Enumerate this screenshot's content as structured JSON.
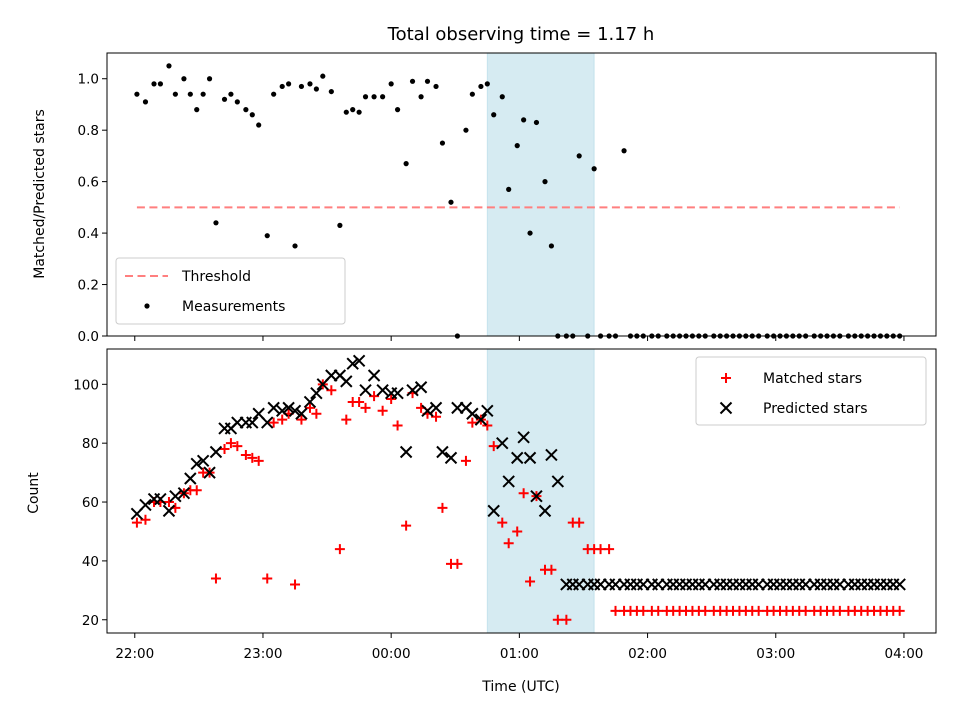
{
  "chart_data": [
    {
      "type": "scatter",
      "title": "Total observing time = 1.17 h",
      "ylabel": "Matched/Predicted stars",
      "xlabel": "",
      "ylim": [
        0,
        1.1
      ],
      "yticks": [
        0.0,
        0.2,
        0.4,
        0.6,
        0.8,
        1.0
      ],
      "yticklabels": [
        "0.0",
        "0.2",
        "0.4",
        "0.6",
        "0.8",
        "1.0"
      ],
      "shaded_interval": [
        "00:45",
        "01:35"
      ],
      "shade_color": "#add8e6",
      "threshold": {
        "name": "Threshold",
        "y": 0.5,
        "x_range": [
          "22:01",
          "03:58"
        ],
        "color": "#ff7f7f",
        "style": "dashed"
      },
      "series": [
        {
          "name": "Measurements",
          "color": "#000000",
          "marker": "dot",
          "x": [
            "22:01",
            "22:05",
            "22:09",
            "22:12",
            "22:16",
            "22:19",
            "22:23",
            "22:26",
            "22:29",
            "22:32",
            "22:35",
            "22:38",
            "22:42",
            "22:45",
            "22:48",
            "22:52",
            "22:55",
            "22:58",
            "23:02",
            "23:05",
            "23:09",
            "23:12",
            "23:15",
            "23:18",
            "23:22",
            "23:25",
            "23:28",
            "23:32",
            "23:36",
            "23:39",
            "23:42",
            "23:45",
            "23:48",
            "23:52",
            "23:56",
            "00:00",
            "00:03",
            "00:07",
            "00:10",
            "00:14",
            "00:17",
            "00:21",
            "00:24",
            "00:28",
            "00:31",
            "00:35",
            "00:38",
            "00:42",
            "00:45",
            "00:48",
            "00:52",
            "00:55",
            "00:59",
            "01:02",
            "01:05",
            "01:08",
            "01:12",
            "01:15",
            "01:18",
            "01:22",
            "01:25",
            "01:28",
            "01:32",
            "01:35",
            "01:38",
            "01:42",
            "01:45",
            "01:49",
            "01:52",
            "01:55",
            "01:58",
            "02:02",
            "02:05",
            "02:09",
            "02:12",
            "02:15",
            "02:18",
            "02:21",
            "02:24",
            "02:27",
            "02:31",
            "02:34",
            "02:37",
            "02:40",
            "02:43",
            "02:46",
            "02:49",
            "02:52",
            "02:56",
            "02:59",
            "03:02",
            "03:05",
            "03:08",
            "03:11",
            "03:14",
            "03:18",
            "03:21",
            "03:24",
            "03:27",
            "03:30",
            "03:34",
            "03:37",
            "03:40",
            "03:43",
            "03:46",
            "03:49",
            "03:52",
            "03:55",
            "03:58"
          ],
          "y": [
            0.94,
            0.91,
            0.98,
            0.98,
            1.05,
            0.94,
            1.0,
            0.94,
            0.88,
            0.94,
            1.0,
            0.44,
            0.92,
            0.94,
            0.91,
            0.88,
            0.86,
            0.82,
            0.39,
            0.94,
            0.97,
            0.98,
            0.35,
            0.97,
            0.98,
            0.96,
            1.01,
            0.95,
            0.43,
            0.87,
            0.88,
            0.87,
            0.93,
            0.93,
            0.93,
            0.98,
            0.88,
            0.67,
            0.99,
            0.93,
            0.99,
            0.97,
            0.75,
            0.52,
            0.0,
            0.8,
            0.94,
            0.97,
            0.98,
            0.86,
            0.93,
            0.57,
            0.74,
            0.84,
            0.4,
            0.83,
            0.6,
            0.35,
            0.0,
            0.0,
            0.0,
            0.7,
            0.0,
            0.65,
            0.0,
            0.0,
            0.0,
            0.72,
            0.0,
            0.0,
            0.0,
            0.0,
            0.0,
            0.0,
            0.0,
            0.0,
            0.0,
            0.0,
            0.0,
            0.0,
            0.0,
            0.0,
            0.0,
            0.0,
            0.0,
            0.0,
            0.0,
            0.0,
            0.0,
            0.0,
            0.0,
            0.0,
            0.0,
            0.0,
            0.0,
            0.0,
            0.0,
            0.0,
            0.0,
            0.0,
            0.0,
            0.0,
            0.0,
            0.0,
            0.0,
            0.0,
            0.0,
            0.0,
            0.0
          ]
        }
      ],
      "legend": {
        "position": "lower-left",
        "entries": [
          "Threshold",
          "Measurements"
        ]
      }
    },
    {
      "type": "scatter",
      "title": "",
      "xlabel": "Time (UTC)",
      "ylabel": "Count",
      "xlim": [
        "21:47",
        "04:15"
      ],
      "ylim": [
        15.5,
        112
      ],
      "xticklabels": [
        "22:00",
        "23:00",
        "00:00",
        "01:00",
        "02:00",
        "03:00",
        "04:00"
      ],
      "yticks": [
        20,
        40,
        60,
        80,
        100
      ],
      "yticklabels": [
        "20",
        "40",
        "60",
        "80",
        "100"
      ],
      "shaded_interval": [
        "00:45",
        "01:35"
      ],
      "shade_color": "#add8e6",
      "series": [
        {
          "name": "Matched stars",
          "color": "#ff0000",
          "marker": "plus",
          "x": [
            "22:01",
            "22:05",
            "22:09",
            "22:12",
            "22:16",
            "22:19",
            "22:23",
            "22:26",
            "22:29",
            "22:32",
            "22:35",
            "22:38",
            "22:42",
            "22:45",
            "22:48",
            "22:52",
            "22:55",
            "22:58",
            "23:02",
            "23:05",
            "23:09",
            "23:12",
            "23:15",
            "23:18",
            "23:22",
            "23:25",
            "23:28",
            "23:32",
            "23:36",
            "23:39",
            "23:42",
            "23:45",
            "23:48",
            "23:52",
            "23:56",
            "00:00",
            "00:03",
            "00:07",
            "00:10",
            "00:14",
            "00:17",
            "00:21",
            "00:24",
            "00:28",
            "00:31",
            "00:35",
            "00:38",
            "00:42",
            "00:45",
            "00:48",
            "00:52",
            "00:55",
            "00:59",
            "01:02",
            "01:05",
            "01:08",
            "01:12",
            "01:15",
            "01:18",
            "01:22",
            "01:25",
            "01:28",
            "01:32",
            "01:35",
            "01:38",
            "01:42",
            "01:45",
            "01:49",
            "01:52",
            "01:55",
            "01:58",
            "02:02",
            "02:05",
            "02:09",
            "02:12",
            "02:15",
            "02:18",
            "02:21",
            "02:24",
            "02:27",
            "02:31",
            "02:34",
            "02:37",
            "02:40",
            "02:43",
            "02:46",
            "02:49",
            "02:52",
            "02:56",
            "02:59",
            "03:02",
            "03:05",
            "03:08",
            "03:11",
            "03:14",
            "03:18",
            "03:21",
            "03:24",
            "03:27",
            "03:30",
            "03:34",
            "03:37",
            "03:40",
            "03:43",
            "03:46",
            "03:49",
            "03:52",
            "03:55",
            "03:58"
          ],
          "y": [
            53,
            54,
            60,
            60,
            60,
            58,
            63,
            64,
            64,
            70,
            70,
            34,
            78,
            80,
            79,
            76,
            75,
            74,
            34,
            87,
            88,
            90,
            32,
            88,
            92,
            90,
            100,
            98,
            44,
            88,
            94,
            94,
            92,
            96,
            91,
            95,
            86,
            52,
            97,
            92,
            90,
            89,
            58,
            39,
            39,
            74,
            87,
            88,
            86,
            79,
            53,
            46,
            50,
            63,
            33,
            62,
            37,
            37,
            20,
            20,
            53,
            53,
            44,
            44,
            44,
            44,
            23,
            23,
            23,
            23,
            23,
            23,
            23,
            23,
            23,
            23,
            23,
            23,
            23,
            23,
            23,
            23,
            23,
            23,
            23,
            23,
            23,
            23,
            23,
            23,
            23,
            23,
            23,
            23,
            23,
            23,
            23,
            23,
            23,
            23,
            23,
            23,
            23,
            23,
            23,
            23,
            23,
            23,
            23
          ]
        },
        {
          "name": "Predicted stars",
          "color": "#000000",
          "marker": "x",
          "x": [
            "22:01",
            "22:05",
            "22:09",
            "22:12",
            "22:16",
            "22:19",
            "22:23",
            "22:26",
            "22:29",
            "22:32",
            "22:35",
            "22:38",
            "22:42",
            "22:45",
            "22:48",
            "22:52",
            "22:55",
            "22:58",
            "23:02",
            "23:05",
            "23:09",
            "23:12",
            "23:15",
            "23:18",
            "23:22",
            "23:25",
            "23:28",
            "23:32",
            "23:36",
            "23:39",
            "23:42",
            "23:45",
            "23:48",
            "23:52",
            "23:56",
            "00:00",
            "00:03",
            "00:07",
            "00:10",
            "00:14",
            "00:17",
            "00:21",
            "00:24",
            "00:28",
            "00:31",
            "00:35",
            "00:38",
            "00:42",
            "00:45",
            "00:48",
            "00:52",
            "00:55",
            "00:59",
            "01:02",
            "01:05",
            "01:08",
            "01:12",
            "01:15",
            "01:18",
            "01:22",
            "01:25",
            "01:28",
            "01:32",
            "01:35",
            "01:38",
            "01:42",
            "01:45",
            "01:49",
            "01:52",
            "01:55",
            "01:58",
            "02:02",
            "02:05",
            "02:09",
            "02:12",
            "02:15",
            "02:18",
            "02:21",
            "02:24",
            "02:27",
            "02:31",
            "02:34",
            "02:37",
            "02:40",
            "02:43",
            "02:46",
            "02:49",
            "02:52",
            "02:56",
            "02:59",
            "03:02",
            "03:05",
            "03:08",
            "03:11",
            "03:14",
            "03:18",
            "03:21",
            "03:24",
            "03:27",
            "03:30",
            "03:34",
            "03:37",
            "03:40",
            "03:43",
            "03:46",
            "03:49",
            "03:52",
            "03:55",
            "03:58"
          ],
          "y": [
            56,
            59,
            61,
            61,
            57,
            62,
            63,
            68,
            73,
            74,
            70,
            77,
            85,
            85,
            87,
            87,
            87,
            90,
            87,
            92,
            91,
            92,
            91,
            90,
            94,
            97,
            100,
            103,
            103,
            101,
            107,
            108,
            98,
            103,
            98,
            97,
            97,
            77,
            98,
            99,
            91,
            92,
            77,
            75,
            92,
            92,
            90,
            88,
            91,
            57,
            80,
            67,
            75,
            82,
            75,
            62,
            57,
            76,
            67,
            32,
            32,
            32,
            32,
            32,
            32,
            32,
            32,
            32,
            32,
            32,
            32,
            32,
            32,
            32,
            32,
            32,
            32,
            32,
            32,
            32,
            32,
            32,
            32,
            32,
            32,
            32,
            32,
            32,
            32,
            32,
            32,
            32,
            32,
            32,
            32,
            32,
            32,
            32,
            32,
            32,
            32,
            32,
            32,
            32,
            32,
            32,
            32,
            32,
            32
          ]
        }
      ],
      "legend": {
        "position": "upper-right",
        "entries": [
          "Matched stars",
          "Predicted stars"
        ]
      }
    }
  ]
}
